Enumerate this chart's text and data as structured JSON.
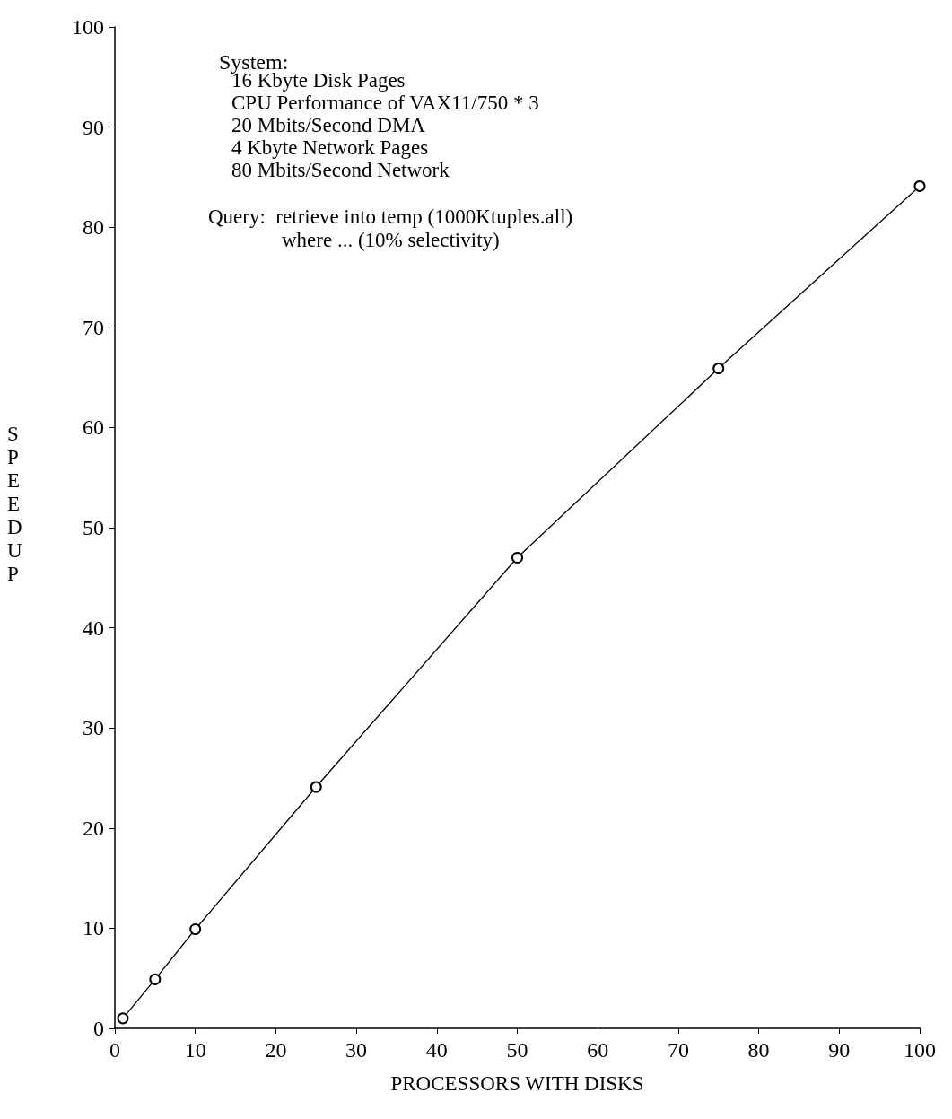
{
  "chart_data": {
    "type": "line",
    "xlabel": "PROCESSORS WITH DISKS",
    "ylabel": "SPEEDUP",
    "x": [
      1,
      5,
      10,
      25,
      50,
      75,
      100
    ],
    "series": [
      {
        "name": "System:",
        "color": "#000000",
        "values": [
          1,
          4.9,
          9.9,
          24.1,
          47,
          65.9,
          84.1
        ]
      }
    ],
    "xlim": [
      0,
      100
    ],
    "xticks": [
      0,
      10,
      20,
      30,
      40,
      50,
      60,
      70,
      80,
      90,
      100
    ],
    "ylim": [
      0,
      100
    ],
    "yticks": [
      0,
      10,
      20,
      30,
      40,
      50,
      60,
      70,
      80,
      90,
      100
    ],
    "annotations": [
      "16 Kbyte Disk Pages",
      "CPU Performance of VAX11/750 * 3",
      "20 Mbits/Second DMA",
      "4 Kbyte Network Pages",
      "80 Mbits/Second Network",
      "Query:  retrieve into temp (1000Ktuples.all)",
      "where ... (10% selectivity)"
    ],
    "grid": false,
    "legend": "top left",
    "marker": "circle",
    "line_style": "solid"
  }
}
